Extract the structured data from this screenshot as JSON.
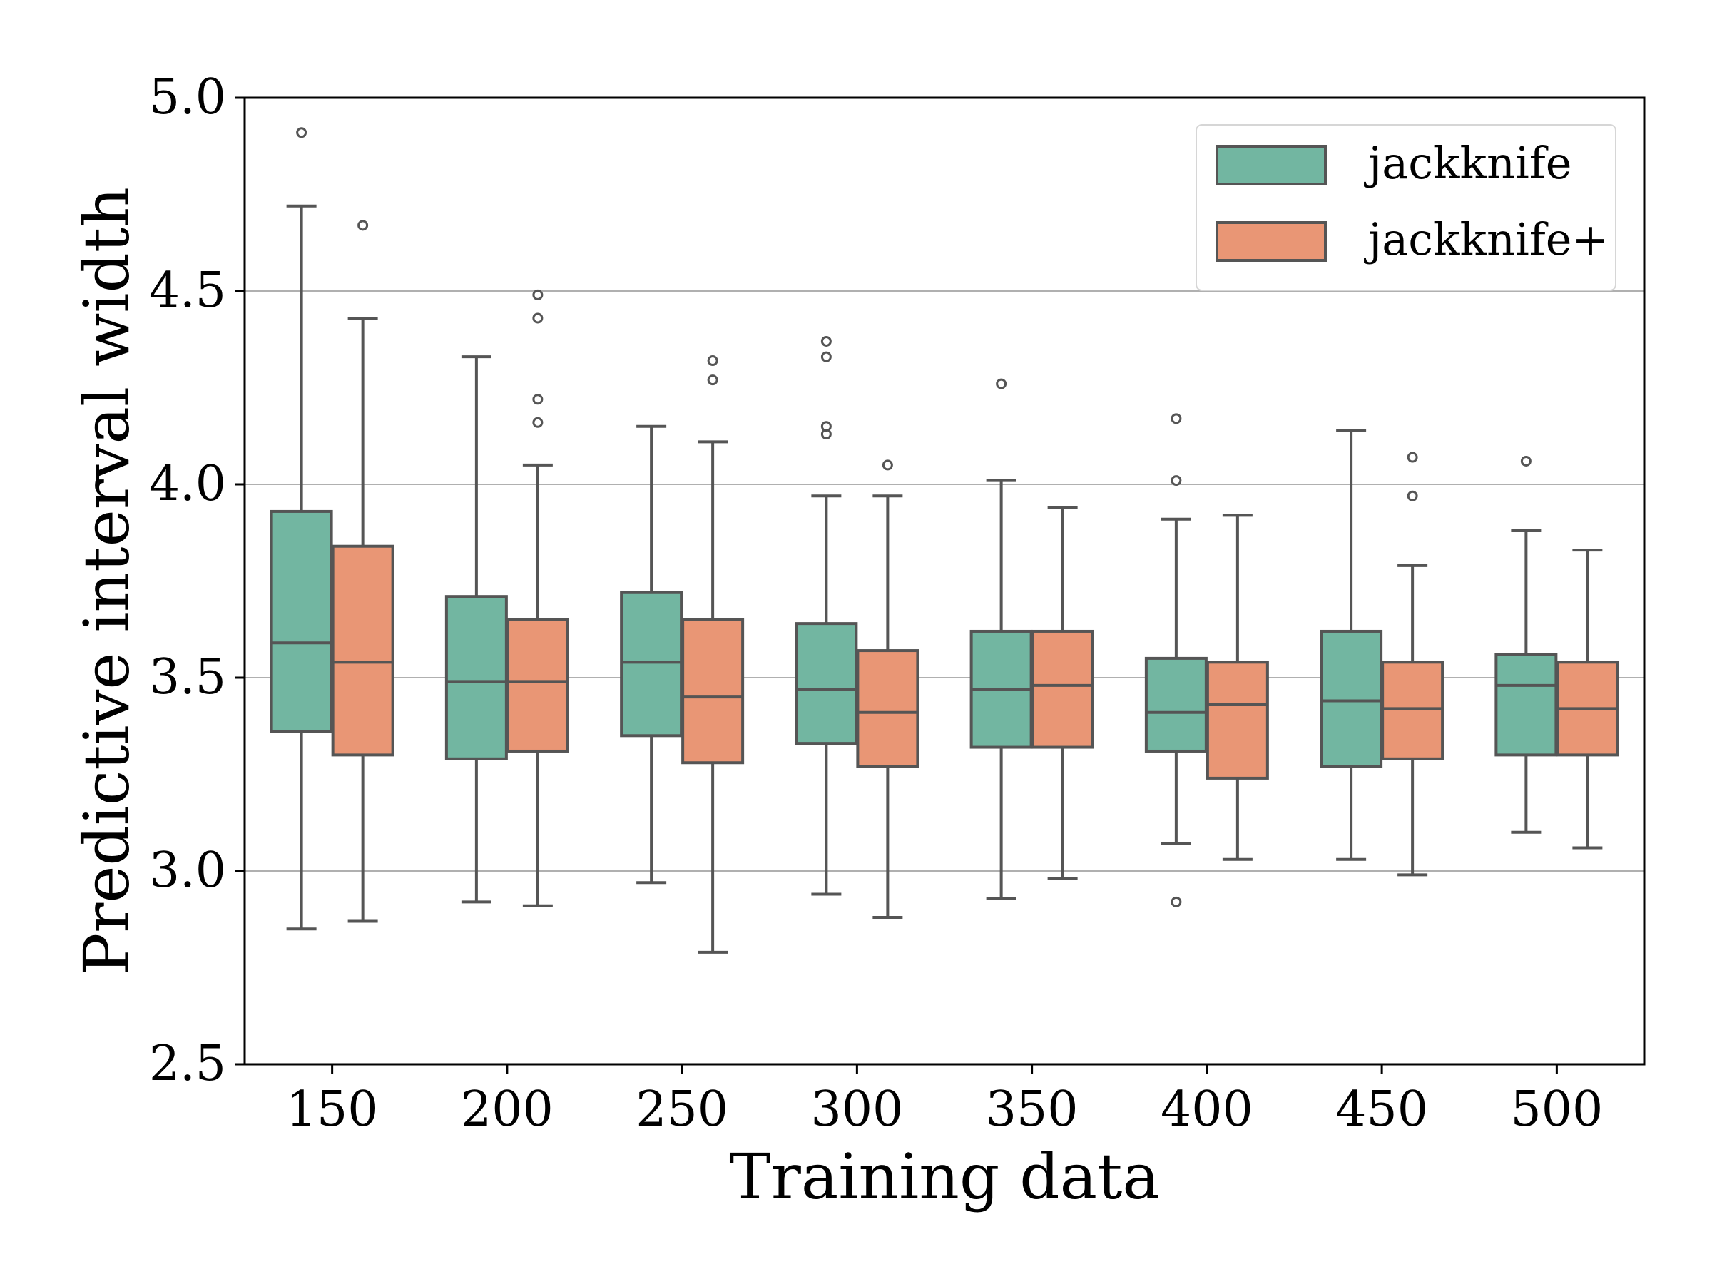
{
  "chart_data": {
    "type": "box",
    "title": "",
    "xlabel": "Training data",
    "ylabel": "Predictive interval width",
    "ylim": [
      2.5,
      5.0
    ],
    "yticks": [
      "2.5",
      "3.0",
      "3.5",
      "4.0",
      "4.5",
      "5.0"
    ],
    "ytick_values": [
      2.5,
      3.0,
      3.5,
      4.0,
      4.5,
      5.0
    ],
    "categories": [
      "150",
      "200",
      "250",
      "300",
      "350",
      "400",
      "450",
      "500"
    ],
    "grid": "y",
    "legend_position": "top-right",
    "series": [
      {
        "name": "jackknife",
        "color": "#72b6a1",
        "boxes": [
          {
            "whislo": 2.85,
            "q1": 3.36,
            "med": 3.59,
            "q3": 3.93,
            "whishi": 4.72,
            "fliers": [
              4.91
            ]
          },
          {
            "whislo": 2.92,
            "q1": 3.29,
            "med": 3.49,
            "q3": 3.71,
            "whishi": 4.33,
            "fliers": []
          },
          {
            "whislo": 2.97,
            "q1": 3.35,
            "med": 3.54,
            "q3": 3.72,
            "whishi": 4.15,
            "fliers": []
          },
          {
            "whislo": 2.94,
            "q1": 3.33,
            "med": 3.47,
            "q3": 3.64,
            "whishi": 3.97,
            "fliers": [
              4.37,
              4.33,
              4.15,
              4.13
            ]
          },
          {
            "whislo": 2.93,
            "q1": 3.32,
            "med": 3.47,
            "q3": 3.62,
            "whishi": 4.01,
            "fliers": [
              4.26
            ]
          },
          {
            "whislo": 3.07,
            "q1": 3.31,
            "med": 3.41,
            "q3": 3.55,
            "whishi": 3.91,
            "fliers": [
              4.17,
              4.01,
              2.92
            ]
          },
          {
            "whislo": 3.03,
            "q1": 3.27,
            "med": 3.44,
            "q3": 3.62,
            "whishi": 4.14,
            "fliers": []
          },
          {
            "whislo": 3.1,
            "q1": 3.3,
            "med": 3.48,
            "q3": 3.56,
            "whishi": 3.88,
            "fliers": [
              4.06
            ]
          }
        ]
      },
      {
        "name": "jackknife+",
        "color": "#e99675",
        "boxes": [
          {
            "whislo": 2.87,
            "q1": 3.3,
            "med": 3.54,
            "q3": 3.84,
            "whishi": 4.43,
            "fliers": [
              4.67
            ]
          },
          {
            "whislo": 2.91,
            "q1": 3.31,
            "med": 3.49,
            "q3": 3.65,
            "whishi": 4.05,
            "fliers": [
              4.49,
              4.43,
              4.22,
              4.16
            ]
          },
          {
            "whislo": 2.79,
            "q1": 3.28,
            "med": 3.45,
            "q3": 3.65,
            "whishi": 4.11,
            "fliers": [
              4.32,
              4.27
            ]
          },
          {
            "whislo": 2.88,
            "q1": 3.27,
            "med": 3.41,
            "q3": 3.57,
            "whishi": 3.97,
            "fliers": [
              4.05
            ]
          },
          {
            "whislo": 2.98,
            "q1": 3.32,
            "med": 3.48,
            "q3": 3.62,
            "whishi": 3.94,
            "fliers": []
          },
          {
            "whislo": 3.03,
            "q1": 3.24,
            "med": 3.43,
            "q3": 3.54,
            "whishi": 3.92,
            "fliers": []
          },
          {
            "whislo": 2.99,
            "q1": 3.29,
            "med": 3.42,
            "q3": 3.54,
            "whishi": 3.79,
            "fliers": [
              4.07,
              3.97
            ]
          },
          {
            "whislo": 3.06,
            "q1": 3.3,
            "med": 3.42,
            "q3": 3.54,
            "whishi": 3.83,
            "fliers": []
          }
        ]
      }
    ]
  }
}
